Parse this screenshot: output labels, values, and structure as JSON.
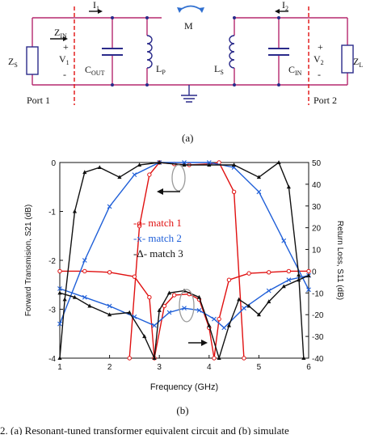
{
  "figure": {
    "circuit": {
      "zs": "Z",
      "zs_sub": "S",
      "zin": "Z",
      "zin_sub": "IN",
      "v1": "V",
      "v1_sub": "1",
      "plus": "+",
      "minus": "-",
      "i1": "I",
      "i1_sub": "1",
      "cout": "C",
      "cout_sub": "OUT",
      "lp": "L",
      "lp_sub": "P",
      "m": "M",
      "ls": "L",
      "ls_sub": "S",
      "cin": "C",
      "cin_sub": "IN",
      "i2": "I",
      "i2_sub": "2",
      "v2": "V",
      "v2_sub": "2",
      "zl": "Z",
      "zl_sub": "L",
      "port1": "Port 1",
      "port2": "Port 2",
      "sublabel": "(a)"
    },
    "plot": {
      "sublabel": "(b)",
      "legend": [
        "-o- match 1",
        "-x- match 2",
        "-Δ- match 3"
      ],
      "legend_colors": [
        "#e01010",
        "#1f5fd8",
        "#111111"
      ]
    },
    "caption_fragment": "2.  (a) Resonant-tuned transformer equivalent circuit and (b) simulate"
  },
  "chart_data": {
    "type": "line",
    "xlabel": "Frequency (GHz)",
    "ylabel": "Forward Transmision, S21 (dB)",
    "y2label": "Return Loss, S11 (dB)",
    "xlim": [
      1,
      6
    ],
    "ylim": [
      -4,
      0
    ],
    "y2lim": [
      -40,
      50
    ],
    "x_ticks": [
      "1",
      "2",
      "3",
      "4",
      "5",
      "6"
    ],
    "y_ticks": [
      "-4",
      "-3",
      "-2",
      "-1",
      "0"
    ],
    "y2_ticks": [
      "-40",
      "-30",
      "-20",
      "-10",
      "0",
      "10",
      "20",
      "30",
      "40",
      "50"
    ],
    "series": [
      {
        "name": "match 1",
        "color": "#e01010",
        "marker": "circle",
        "axis": "left",
        "x": [
          2.4,
          2.6,
          2.8,
          3.0,
          3.3,
          3.6,
          4.0,
          4.2,
          4.5,
          4.7
        ],
        "y": [
          -4.0,
          -1.3,
          -0.25,
          0.0,
          -0.03,
          -0.05,
          -0.03,
          0.0,
          -0.6,
          -4.0
        ]
      },
      {
        "name": "match 1 S11",
        "color": "#e01010",
        "marker": "circle",
        "axis": "right",
        "x": [
          1.0,
          1.5,
          2.0,
          2.5,
          2.8,
          2.9,
          3.1,
          3.3,
          3.6,
          3.8,
          4.0,
          4.1,
          4.2,
          4.4,
          4.8,
          5.2,
          5.6,
          6.0
        ],
        "y": [
          0.0,
          0.0,
          -0.5,
          -2.5,
          -12.0,
          -40.0,
          -16.0,
          -11.0,
          -10.5,
          -13.0,
          -26.0,
          -40.0,
          -22.0,
          -4.0,
          -1.0,
          -0.5,
          0.0,
          0.0
        ]
      },
      {
        "name": "match 2",
        "color": "#1f5fd8",
        "marker": "x",
        "axis": "left",
        "x": [
          1.0,
          1.5,
          2.0,
          2.5,
          3.0,
          3.5,
          4.0,
          4.5,
          5.0,
          5.5,
          6.0
        ],
        "y": [
          -3.3,
          -2.0,
          -0.9,
          -0.25,
          0.0,
          0.0,
          0.0,
          -0.1,
          -0.6,
          -1.6,
          -2.6
        ]
      },
      {
        "name": "match 2 S11",
        "color": "#1f5fd8",
        "marker": "x",
        "axis": "right",
        "x": [
          1.0,
          1.5,
          2.0,
          2.5,
          2.9,
          3.2,
          3.5,
          3.8,
          4.1,
          4.3,
          4.7,
          5.2,
          5.6,
          6.0
        ],
        "y": [
          -8.0,
          -12.0,
          -16.0,
          -21.0,
          -25.0,
          -19.0,
          -17.0,
          -18.0,
          -22.0,
          -26.0,
          -17.0,
          -9.0,
          -4.0,
          -2.0
        ]
      },
      {
        "name": "match 3",
        "color": "#111111",
        "marker": "triangle",
        "axis": "left",
        "x": [
          1.0,
          1.1,
          1.3,
          1.5,
          1.8,
          2.2,
          2.6,
          3.0,
          3.5,
          4.0,
          4.5,
          5.0,
          5.4,
          5.6,
          5.8,
          5.9
        ],
        "y": [
          -4.0,
          -2.8,
          -1.0,
          -0.2,
          -0.1,
          -0.3,
          -0.05,
          0.0,
          -0.05,
          -0.05,
          -0.05,
          -0.3,
          0.0,
          -0.5,
          -2.3,
          -4.0
        ]
      },
      {
        "name": "match 3 S11",
        "color": "#111111",
        "marker": "triangle",
        "axis": "right",
        "x": [
          1.0,
          1.3,
          1.6,
          2.0,
          2.4,
          2.7,
          2.9,
          3.0,
          3.2,
          3.5,
          3.8,
          4.0,
          4.2,
          4.4,
          4.6,
          4.8,
          5.0,
          5.2,
          5.5,
          5.8,
          6.0
        ],
        "y": [
          -10.0,
          -12.0,
          -16.0,
          -20.0,
          -19.0,
          -30.0,
          -40.0,
          -18.0,
          -10.0,
          -9.0,
          -12.0,
          -25.0,
          -40.0,
          -25.0,
          -13.0,
          -16.0,
          -20.0,
          -14.0,
          -7.0,
          -4.0,
          -2.0
        ]
      }
    ]
  }
}
